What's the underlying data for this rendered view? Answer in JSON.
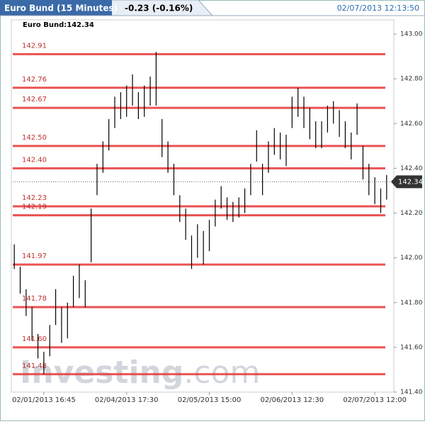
{
  "header": {
    "title": "Euro Bund (15 Minutes)",
    "change": "-0.23 (-0.16%)",
    "timestamp": "02/07/2013 12:13:50"
  },
  "chart_data": {
    "type": "hlbar",
    "legend": "Euro Bund:142.34",
    "last": 142.34,
    "color": "#000000",
    "level_color": "#e84040",
    "watermark": [
      "Investing",
      ".com"
    ],
    "xlim": [
      -0.5,
      63.5
    ],
    "xticks": [
      {
        "value": 5,
        "label": "02/01/2013 16:45"
      },
      {
        "value": 19,
        "label": "02/04/2013 17:30"
      },
      {
        "value": 33,
        "label": "02/05/2013 15:00"
      },
      {
        "value": 47,
        "label": "02/06/2013 12:30"
      },
      {
        "value": 61,
        "label": "02/07/2013 12:00"
      }
    ],
    "ylim": [
      141.4,
      143.0
    ],
    "yticks": [
      {
        "value": 141.4,
        "label": "141.40"
      },
      {
        "value": 141.6,
        "label": "141.60"
      },
      {
        "value": 141.8,
        "label": "141.80"
      },
      {
        "value": 142.0,
        "label": "142.00"
      },
      {
        "value": 142.2,
        "label": "142.20"
      },
      {
        "value": 142.4,
        "label": "142.40"
      },
      {
        "value": 142.6,
        "label": "142.60"
      },
      {
        "value": 142.8,
        "label": "142.80"
      },
      {
        "value": 143.0,
        "label": "143.00"
      }
    ],
    "levels": [
      142.91,
      142.76,
      142.67,
      {
        "value": 142.5,
        "label": "142.50"
      },
      {
        "value": 142.4,
        "label": "142.40"
      },
      142.23,
      142.19,
      141.97,
      141.78,
      {
        "value": 141.6,
        "label": "141.60"
      },
      141.48
    ],
    "highs": [
      142.06,
      141.96,
      141.86,
      141.78,
      141.66,
      141.58,
      141.7,
      141.86,
      141.78,
      141.8,
      141.92,
      141.97,
      141.9,
      142.22,
      142.42,
      142.52,
      142.62,
      142.72,
      142.74,
      142.77,
      142.82,
      142.74,
      142.77,
      142.81,
      142.92,
      142.62,
      142.52,
      142.42,
      142.28,
      142.22,
      142.1,
      142.15,
      142.12,
      142.17,
      142.26,
      142.32,
      142.27,
      142.25,
      142.27,
      142.31,
      142.42,
      142.57,
      142.42,
      142.52,
      142.58,
      142.56,
      142.55,
      142.72,
      142.76,
      142.72,
      142.67,
      142.61,
      142.61,
      142.68,
      142.7,
      142.66,
      142.61,
      142.56,
      142.69,
      142.5,
      142.42,
      142.36,
      142.31,
      142.37
    ],
    "lows": [
      141.95,
      141.84,
      141.74,
      141.63,
      141.55,
      141.48,
      141.56,
      141.7,
      141.62,
      141.64,
      141.78,
      141.82,
      141.78,
      141.98,
      142.28,
      142.38,
      142.48,
      142.58,
      142.62,
      142.63,
      142.68,
      142.62,
      142.63,
      142.68,
      142.68,
      142.45,
      142.38,
      142.28,
      142.16,
      142.08,
      141.95,
      142.0,
      141.97,
      142.03,
      142.14,
      142.22,
      142.17,
      142.16,
      142.18,
      142.2,
      142.28,
      142.43,
      142.28,
      142.38,
      142.46,
      142.44,
      142.41,
      142.58,
      142.63,
      142.58,
      142.53,
      142.49,
      142.49,
      142.56,
      142.6,
      142.54,
      142.49,
      142.44,
      142.55,
      142.35,
      142.28,
      142.24,
      142.2,
      142.26
    ]
  }
}
